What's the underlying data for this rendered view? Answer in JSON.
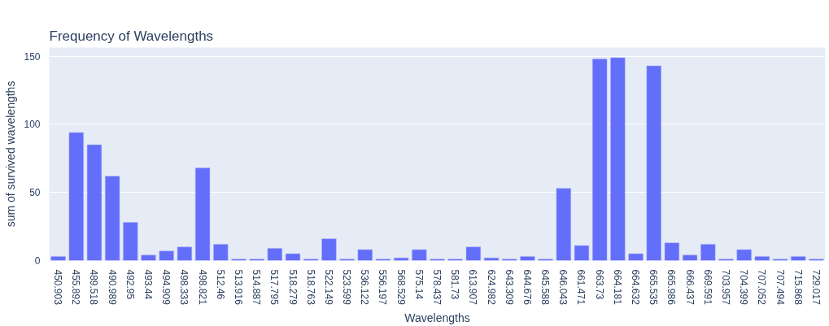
{
  "chart_data": {
    "type": "bar",
    "title": "Frequency of Wavelengths",
    "xlabel": "Wavelengths",
    "ylabel": "sum of survived wavelengths",
    "categories": [
      "450.903",
      "455.892",
      "489.518",
      "490.989",
      "492.95",
      "493.44",
      "494.909",
      "498.333",
      "498.821",
      "512.46",
      "513.916",
      "514.887",
      "517.795",
      "518.279",
      "518.763",
      "522.149",
      "523.599",
      "536.122",
      "556.197",
      "568.529",
      "575.14",
      "578.437",
      "581.73",
      "613.907",
      "624.982",
      "643.309",
      "644.676",
      "645.588",
      "646.043",
      "661.471",
      "663.73",
      "664.181",
      "664.632",
      "665.535",
      "665.986",
      "666.437",
      "669.591",
      "703.957",
      "704.399",
      "707.052",
      "707.494",
      "715.868",
      "729.017"
    ],
    "values": [
      3,
      94,
      85,
      62,
      28,
      4,
      7,
      10,
      68,
      12,
      1,
      1,
      9,
      5,
      1,
      16,
      1,
      8,
      1,
      2,
      8,
      1,
      1,
      10,
      2,
      1,
      3,
      1,
      53,
      11,
      148,
      149,
      5,
      143,
      13,
      4,
      12,
      1,
      8,
      3,
      1,
      3,
      1
    ],
    "color": "#636efa",
    "ylim": [
      0,
      156.4
    ],
    "yticks": [
      0,
      50,
      100,
      150
    ],
    "grid": "y"
  }
}
